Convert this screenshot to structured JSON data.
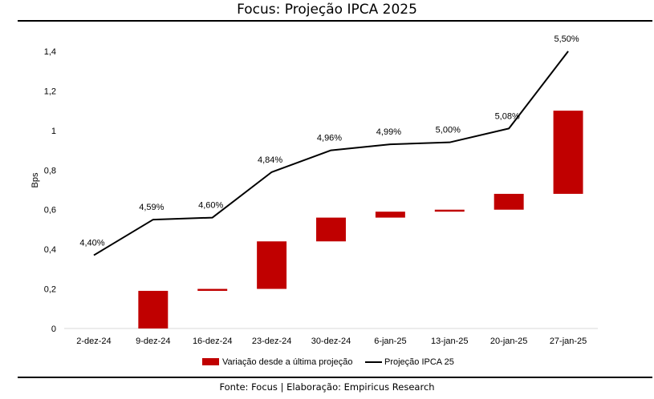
{
  "header": {
    "title": "Focus: Projeção IPCA 2025"
  },
  "footer": {
    "source": "Fonte: Focus | Elaboração: Empiricus Research"
  },
  "chart_data": {
    "type": "bar",
    "subtype": "waterfall-with-line",
    "ylabel": "Bps",
    "ylim": [
      0,
      1.4
    ],
    "yticks": [
      "0",
      "0,2",
      "0,4",
      "0,6",
      "0,8",
      "1",
      "1,2",
      "1,4"
    ],
    "ytick_values": [
      0,
      0.2,
      0.4,
      0.6,
      0.8,
      1.0,
      1.2,
      1.4
    ],
    "categories": [
      "2-dez-24",
      "9-dez-24",
      "16-dez-24",
      "23-dez-24",
      "30-dez-24",
      "6-jan-25",
      "13-jan-25",
      "20-jan-25",
      "27-jan-25"
    ],
    "grid": false,
    "legend_position": "bottom",
    "series": [
      {
        "name": "Variação desde a última projeção",
        "kind": "floating-bar",
        "color": "#c00000",
        "bars": [
          null,
          {
            "low": 0.0,
            "high": 0.19
          },
          {
            "low": 0.19,
            "high": 0.2
          },
          {
            "low": 0.2,
            "high": 0.44
          },
          {
            "low": 0.44,
            "high": 0.56
          },
          {
            "low": 0.56,
            "high": 0.59
          },
          {
            "low": 0.59,
            "high": 0.6
          },
          {
            "low": 0.6,
            "high": 0.68
          },
          {
            "low": 0.68,
            "high": 1.1
          }
        ]
      },
      {
        "name": "Projeção IPCA 25",
        "kind": "line",
        "color": "#000000",
        "values": [
          0.37,
          0.55,
          0.56,
          0.79,
          0.9,
          0.93,
          0.94,
          1.01,
          1.4
        ],
        "labels": [
          "4,40%",
          "4,59%",
          "4,60%",
          "4,84%",
          "4,96%",
          "4,99%",
          "5,00%",
          "5,08%",
          "5,50%"
        ]
      }
    ]
  }
}
